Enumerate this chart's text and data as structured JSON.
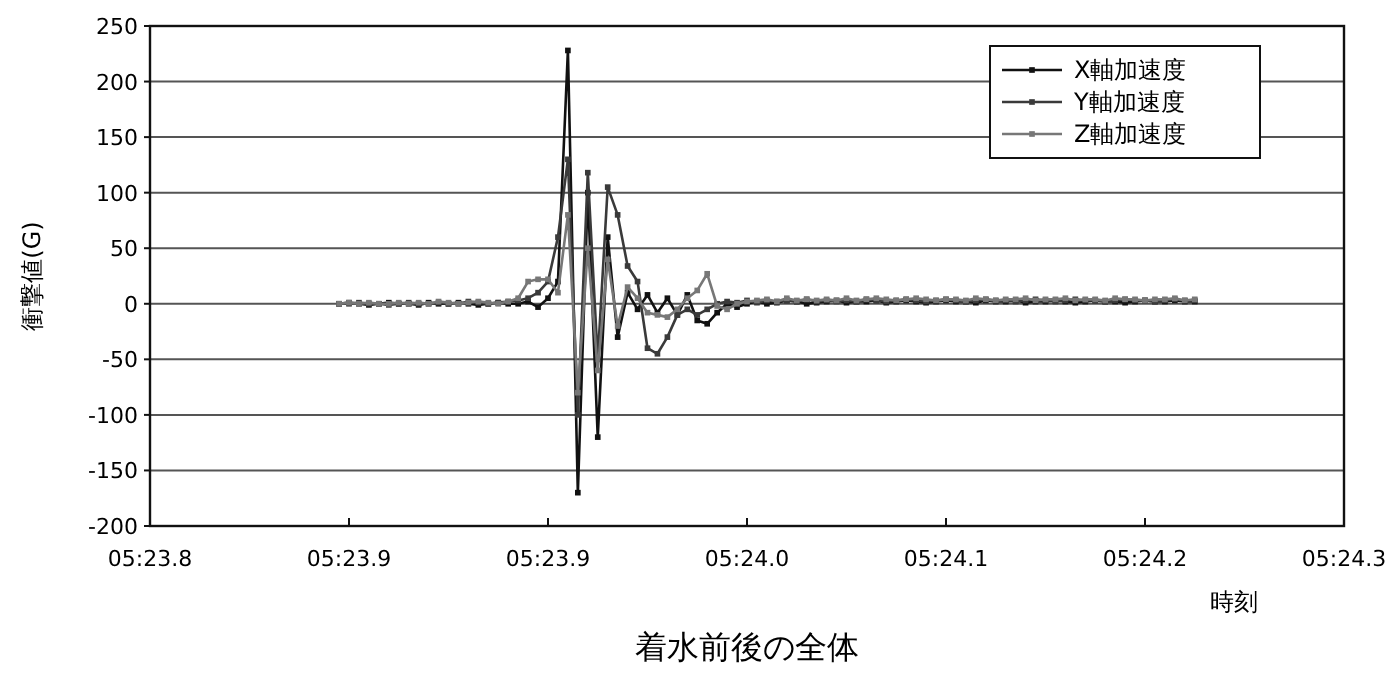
{
  "chart_data": {
    "type": "line",
    "title": "着水前後の全体",
    "xlabel": "時刻",
    "ylabel": "衝撃値(G)",
    "categories": [
      "05:23.8",
      null,
      null,
      null,
      null,
      null,
      null,
      null,
      null,
      null,
      null,
      null,
      null,
      null,
      null,
      null,
      null,
      null,
      null,
      null,
      "05:23.9",
      null,
      null,
      null,
      null,
      null,
      null,
      null,
      null,
      null,
      null,
      null,
      null,
      null,
      null,
      null,
      null,
      null,
      null,
      null,
      "05:23.9",
      null,
      null,
      null,
      null,
      null,
      null,
      null,
      null,
      null,
      null,
      null,
      null,
      null,
      null,
      null,
      null,
      null,
      null,
      null,
      "05:24.0",
      null,
      null,
      null,
      null,
      null,
      null,
      null,
      null,
      null,
      null,
      null,
      null,
      null,
      null,
      null,
      null,
      null,
      null,
      null,
      "05:24.1",
      null,
      null,
      null,
      null,
      null,
      null,
      null,
      null,
      null,
      null,
      null,
      null,
      null,
      null,
      null,
      null,
      null,
      null,
      null,
      "05:24.2",
      null,
      null,
      null,
      null,
      null,
      null,
      null,
      null,
      null,
      null,
      null,
      null,
      null,
      null,
      null,
      null,
      null,
      null,
      null,
      "05:24.3"
    ],
    "series": [
      {
        "name": "X軸加速度",
        "color": "#111111",
        "values": [
          null,
          null,
          null,
          null,
          null,
          null,
          null,
          null,
          null,
          null,
          null,
          null,
          null,
          null,
          null,
          null,
          null,
          null,
          null,
          0,
          1,
          0,
          -1,
          0,
          1,
          0,
          0,
          -1,
          1,
          0,
          0,
          1,
          0,
          -1,
          0,
          1,
          0,
          0,
          2,
          -3,
          5,
          20,
          228,
          -170,
          100,
          -120,
          60,
          -30,
          10,
          -5,
          8,
          -8,
          5,
          -10,
          8,
          -15,
          -18,
          -8,
          0,
          -3,
          0,
          2,
          0,
          1,
          3,
          2,
          0,
          1,
          2,
          3,
          1,
          2,
          2,
          3,
          1,
          2,
          3,
          2,
          1,
          2,
          3,
          2,
          2,
          1,
          3,
          2,
          2,
          3,
          1,
          2,
          2,
          3,
          2,
          1,
          2,
          3,
          2,
          2,
          1,
          2,
          3,
          2,
          2,
          3,
          2,
          2,
          null,
          null,
          null,
          null,
          null,
          null,
          null,
          null,
          null,
          null,
          null,
          null,
          null,
          null,
          null
        ]
      },
      {
        "name": "Y軸加速度",
        "color": "#3a3a3a",
        "values": [
          null,
          null,
          null,
          null,
          null,
          null,
          null,
          null,
          null,
          null,
          null,
          null,
          null,
          null,
          null,
          null,
          null,
          null,
          null,
          0,
          0,
          1,
          0,
          0,
          -1,
          0,
          1,
          0,
          0,
          1,
          0,
          0,
          2,
          1,
          0,
          1,
          2,
          3,
          5,
          10,
          20,
          60,
          130,
          -100,
          118,
          -50,
          105,
          80,
          34,
          20,
          -40,
          -45,
          -30,
          -10,
          -5,
          -10,
          -5,
          0,
          2,
          1,
          3,
          1,
          3,
          2,
          3,
          2,
          4,
          2,
          3,
          2,
          3,
          2,
          4,
          3,
          2,
          3,
          4,
          3,
          2,
          3,
          4,
          3,
          2,
          3,
          4,
          3,
          3,
          2,
          3,
          4,
          3,
          2,
          3,
          4,
          3,
          3,
          2,
          3,
          4,
          3,
          3,
          2,
          3,
          4,
          3,
          3,
          null,
          null,
          null,
          null,
          null,
          null,
          null,
          null,
          null,
          null,
          null,
          null,
          null,
          null,
          null
        ]
      },
      {
        "name": "Z軸加速度",
        "color": "#777777",
        "values": [
          null,
          null,
          null,
          null,
          null,
          null,
          null,
          null,
          null,
          null,
          null,
          null,
          null,
          null,
          null,
          null,
          null,
          null,
          null,
          0,
          1,
          0,
          1,
          0,
          0,
          1,
          0,
          1,
          0,
          2,
          1,
          0,
          1,
          2,
          1,
          0,
          2,
          5,
          20,
          22,
          22,
          10,
          80,
          -80,
          50,
          -60,
          40,
          -20,
          15,
          5,
          -8,
          -10,
          -12,
          -5,
          5,
          12,
          27,
          -2,
          -5,
          0,
          2,
          3,
          4,
          2,
          5,
          3,
          4,
          3,
          4,
          3,
          5,
          3,
          4,
          5,
          4,
          3,
          4,
          5,
          4,
          3,
          4,
          4,
          3,
          5,
          4,
          3,
          4,
          4,
          5,
          3,
          4,
          4,
          5,
          3,
          4,
          4,
          3,
          5,
          4,
          4,
          3,
          4,
          4,
          5,
          3,
          4,
          null,
          null,
          null,
          null,
          null,
          null,
          null,
          null,
          null,
          null,
          null,
          null,
          null,
          null,
          null
        ]
      }
    ],
    "ylim": [
      -200,
      250
    ],
    "yticks": [
      -200,
      -150,
      -100,
      -50,
      0,
      50,
      100,
      150,
      200,
      250
    ],
    "grid": "y",
    "legend": "top right",
    "marker": "square",
    "line_style": "solid"
  }
}
